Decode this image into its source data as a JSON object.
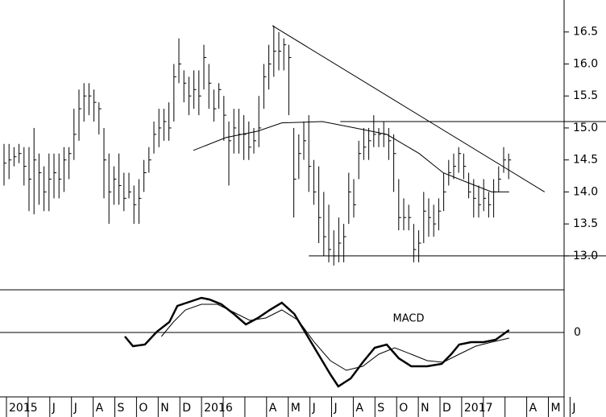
{
  "chart_data": [
    {
      "type": "hlc",
      "categories": [
        "2015",
        null,
        "J",
        "J",
        "A",
        "S",
        "O",
        "N",
        "D",
        "2016",
        null,
        null,
        "A",
        "M",
        "J",
        "J",
        "A",
        "S",
        "O",
        "N",
        "D",
        "2017",
        null,
        null,
        "A",
        "M",
        "J"
      ],
      "high": [
        14.75,
        14.75,
        14.7,
        14.75,
        14.7,
        14.7,
        15.0,
        14.6,
        14.4,
        14.6,
        14.6,
        14.6,
        14.7,
        14.7,
        15.3,
        15.6,
        15.7,
        15.7,
        15.6,
        15.4,
        15.0,
        14.6,
        14.4,
        14.6,
        14.3,
        14.3,
        14.1,
        14.2,
        14.5,
        14.7,
        15.1,
        15.3,
        15.3,
        15.4,
        16.0,
        16.4,
        15.9,
        15.8,
        15.9,
        15.9,
        16.3,
        16.0,
        15.6,
        15.7,
        15.5,
        15.1,
        15.3,
        15.3,
        15.2,
        15.1,
        15.0,
        15.5,
        16.0,
        16.3,
        16.6,
        16.5,
        16.4,
        16.3,
        15.0,
        14.9,
        15.1,
        15.2,
        14.5,
        14.4,
        14.0,
        13.8,
        13.4,
        13.6,
        13.5,
        14.3,
        14.2,
        14.8,
        15.0,
        15.0,
        15.2,
        15.0,
        15.1,
        15.0,
        14.9,
        14.2,
        13.9,
        13.8,
        13.5,
        13.4,
        14.0,
        13.9,
        13.8,
        13.9,
        14.3,
        14.5,
        14.6,
        14.7,
        14.6,
        14.3,
        14.2,
        14.1,
        14.2,
        14.0,
        14.2,
        14.4,
        14.7,
        14.6
      ],
      "low": [
        14.1,
        14.2,
        14.4,
        14.45,
        14.1,
        13.7,
        13.65,
        13.8,
        13.7,
        13.7,
        13.9,
        13.9,
        14.0,
        14.2,
        14.5,
        14.8,
        15.1,
        15.2,
        15.1,
        14.9,
        13.9,
        13.5,
        13.8,
        13.8,
        13.7,
        13.9,
        13.5,
        13.5,
        14.0,
        14.3,
        14.6,
        14.7,
        14.8,
        14.8,
        15.1,
        15.7,
        15.4,
        15.2,
        15.3,
        15.2,
        15.6,
        15.3,
        15.1,
        15.3,
        14.8,
        14.1,
        14.6,
        14.6,
        14.5,
        14.5,
        14.6,
        14.7,
        15.3,
        15.6,
        15.8,
        15.9,
        15.9,
        15.2,
        13.6,
        14.2,
        14.5,
        14.0,
        13.8,
        13.2,
        13.0,
        12.9,
        12.85,
        12.9,
        12.9,
        13.5,
        13.6,
        14.2,
        14.5,
        14.5,
        14.7,
        14.7,
        14.7,
        14.5,
        14.0,
        13.4,
        13.4,
        13.4,
        12.9,
        12.9,
        13.2,
        13.3,
        13.3,
        13.4,
        13.7,
        14.1,
        14.2,
        14.3,
        14.2,
        13.9,
        13.6,
        13.6,
        13.7,
        13.6,
        13.6,
        14.0,
        14.3,
        14.2
      ],
      "close": [
        14.45,
        14.5,
        14.55,
        14.6,
        14.4,
        14.2,
        14.5,
        14.3,
        14.0,
        14.2,
        14.3,
        14.2,
        14.5,
        14.6,
        14.9,
        15.3,
        15.5,
        15.5,
        15.4,
        15.3,
        14.5,
        14.0,
        14.2,
        14.1,
        13.9,
        14.0,
        13.8,
        13.9,
        14.3,
        14.5,
        14.9,
        15.0,
        15.1,
        15.0,
        15.8,
        16.0,
        15.7,
        15.5,
        15.6,
        15.5,
        16.1,
        15.7,
        15.3,
        15.6,
        15.2,
        14.8,
        15.0,
        14.9,
        14.9,
        14.7,
        14.8,
        15.0,
        15.8,
        16.0,
        16.2,
        16.2,
        16.3,
        16.1,
        14.2,
        14.6,
        14.8,
        14.4,
        14.0,
        13.6,
        13.3,
        13.1,
        13.0,
        13.2,
        13.3,
        14.0,
        13.8,
        14.6,
        14.7,
        14.8,
        14.9,
        14.9,
        14.9,
        14.8,
        14.6,
        13.6,
        13.6,
        13.6,
        13.1,
        13.2,
        13.7,
        13.6,
        13.5,
        13.7,
        14.0,
        14.3,
        14.4,
        14.6,
        14.4,
        14.0,
        13.9,
        13.8,
        13.9,
        13.8,
        14.0,
        14.2,
        14.5,
        14.5
      ],
      "overlays": [
        {
          "x": [
            37.9,
            44.4,
            50.8,
            55.6,
            63.7,
            70.2,
            76.6,
            83.1,
            87.9,
            92.7,
            97.6,
            101.1
          ],
          "values": [
            14.65,
            14.85,
            14.95,
            15.08,
            15.1,
            15.0,
            14.9,
            14.6,
            14.3,
            14.15,
            14.0,
            14.0
          ]
        }
      ],
      "trendlines": [
        {
          "x": [
            53.7,
            108.2
          ],
          "values": [
            16.6,
            14.0
          ]
        },
        {
          "x": [
            67.3,
            120.5
          ],
          "values": [
            15.1,
            15.1
          ]
        },
        {
          "x": [
            61.0,
            120.5
          ],
          "values": [
            13.0,
            13.0
          ]
        }
      ],
      "color": "#000000",
      "ylim": [
        12.47,
        17.0
      ],
      "yticks": [
        {
          "value": 13,
          "label": "13.0"
        },
        {
          "value": 13.5,
          "label": "13.5"
        },
        {
          "value": 14,
          "label": "14.0"
        },
        {
          "value": 14.5,
          "label": "14.5"
        },
        {
          "value": 15,
          "label": "15.0"
        },
        {
          "value": 15.5,
          "label": "15.5"
        },
        {
          "value": 16,
          "label": "16.0"
        },
        {
          "value": 16.5,
          "label": "16.5"
        }
      ]
    },
    {
      "type": "line",
      "annotation": "MACD",
      "series": [
        {
          "x": [
            24.2,
            25.8,
            28.2,
            30.6,
            33.1,
            34.7,
            37.1,
            39.5,
            41.1,
            43.5,
            46,
            48.4,
            50.8,
            53.2,
            55.6,
            58.1,
            60.5,
            62.9,
            65.3,
            66.9,
            69.4,
            71.8,
            74.2,
            76.6,
            79,
            81.5,
            84.7,
            87.6,
            89.5,
            91.1,
            93.5,
            96,
            98.4,
            101.1
          ],
          "values": [
            -0.05,
            -0.17,
            -0.15,
            0.01,
            0.13,
            0.33,
            0.38,
            0.43,
            0.41,
            0.35,
            0.23,
            0.1,
            0.18,
            0.28,
            0.37,
            0.23,
            -0.02,
            -0.27,
            -0.52,
            -0.67,
            -0.57,
            -0.37,
            -0.19,
            -0.15,
            -0.32,
            -0.42,
            -0.42,
            -0.39,
            -0.27,
            -0.15,
            -0.12,
            -0.12,
            -0.09,
            0.03
          ],
          "line_width": 2.5
        },
        {
          "x": [
            31.5,
            33.9,
            36.3,
            39.5,
            42.7,
            46,
            49.2,
            52.4,
            55.6,
            58.9,
            62.1,
            65.3,
            68.5,
            71.8,
            75,
            78.2,
            81.5,
            84.7,
            87.9,
            91.1,
            94.4,
            97.6,
            101.1
          ],
          "values": [
            -0.05,
            0.13,
            0.28,
            0.35,
            0.35,
            0.25,
            0.15,
            0.18,
            0.28,
            0.15,
            -0.12,
            -0.35,
            -0.47,
            -0.42,
            -0.27,
            -0.19,
            -0.27,
            -0.35,
            -0.37,
            -0.27,
            -0.17,
            -0.12,
            -0.07
          ],
          "line_width": 1
        }
      ],
      "color": "#000000",
      "ylim": [
        -0.8,
        0.53
      ],
      "yticks": [
        0
      ]
    }
  ]
}
